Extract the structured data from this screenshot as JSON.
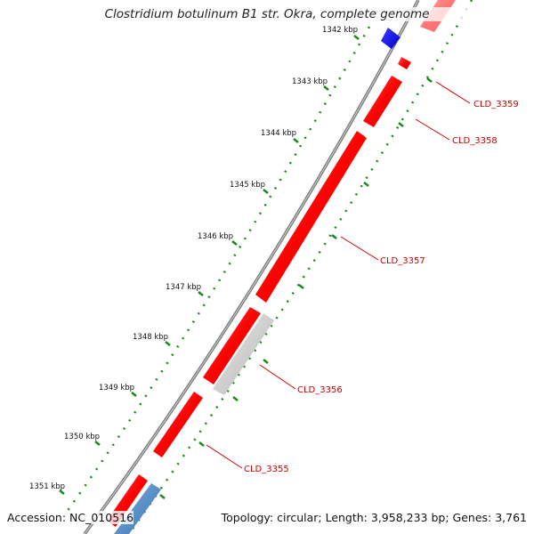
{
  "title": "Clostridium botulinum B1 str. Okra, complete genome",
  "accession": "Accession: NC_010516",
  "summary": "Topology: circular; Length: 3,958,233 bp; Genes: 3,761",
  "ticks": [
    "1342 kbp",
    "1343 kbp",
    "1344 kbp",
    "1345 kbp",
    "1346 kbp",
    "1347 kbp",
    "1348 kbp",
    "1349 kbp",
    "1350 kbp",
    "1351 kbp"
  ],
  "gene_labels": [
    "CLD_3359",
    "CLD_3358",
    "CLD_3357",
    "CLD_3356",
    "CLD_3355"
  ],
  "colors": {
    "backbone": "#777777",
    "cds_red": "#ff0000",
    "cds_blue": "#0000dd",
    "cds_gray": "#c8c8c8",
    "cds_steel": "#4f86c0",
    "dotted_ring": "#1a8a1a",
    "label": "#cc0000"
  }
}
